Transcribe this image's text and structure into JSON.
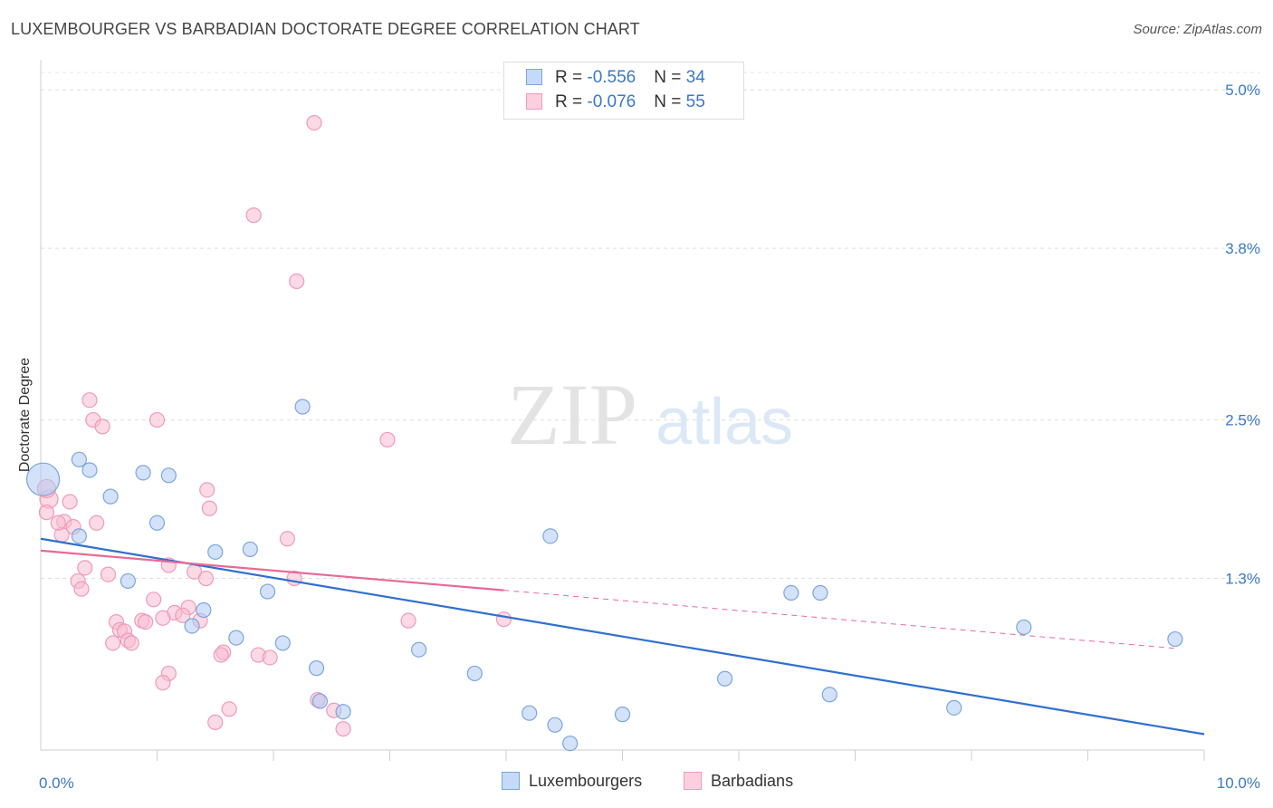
{
  "header": {
    "title": "LUXEMBOURGER VS BARBADIAN DOCTORATE DEGREE CORRELATION CHART",
    "source": "Source: ZipAtlas.com"
  },
  "watermark": {
    "zip": "ZIP",
    "atlas": "atlas"
  },
  "legend": {
    "blue": {
      "r_label": "R = ",
      "r_value": "-0.556",
      "n_label": "N = ",
      "n_value": "34"
    },
    "pink": {
      "r_label": "R = ",
      "r_value": "-0.076",
      "n_label": "N = ",
      "n_value": "55"
    }
  },
  "colors": {
    "blue_fill": "#aecbf2",
    "blue_stroke": "#7aa6de",
    "blue_line": "#2f6fd0",
    "pink_fill": "#f8bcd0",
    "pink_stroke": "#ef9ab8",
    "pink_line": "#e86a94",
    "tick_text": "#3a78c8"
  },
  "chart_data": {
    "type": "scatter",
    "title": "LUXEMBOURGER VS BARBADIAN DOCTORATE DEGREE CORRELATION CHART",
    "xlabel": "",
    "ylabel": "Doctorate Degree",
    "xlim": [
      0,
      10
    ],
    "ylim": [
      0,
      5.2
    ],
    "x_tick_labels": [
      {
        "value": 0,
        "label": "0.0%"
      },
      {
        "value": 10,
        "label": "10.0%"
      }
    ],
    "y_tick_labels": [
      {
        "value": 1.3,
        "label": "1.3%"
      },
      {
        "value": 2.5,
        "label": "2.5%"
      },
      {
        "value": 3.8,
        "label": "3.8%"
      },
      {
        "value": 5.0,
        "label": "5.0%"
      }
    ],
    "grid": true,
    "legend_position": "top-center",
    "series": [
      {
        "name": "Luxembourgers",
        "color": "#aecbf2",
        "points": [
          [
            0.02,
            2.05
          ],
          [
            0.42,
            2.12
          ],
          [
            0.88,
            2.1
          ],
          [
            1.1,
            2.08
          ],
          [
            0.6,
            1.92
          ],
          [
            0.33,
            1.62
          ],
          [
            1.0,
            1.72
          ],
          [
            1.5,
            1.5
          ],
          [
            1.8,
            1.52
          ],
          [
            2.25,
            2.6
          ],
          [
            0.75,
            1.28
          ],
          [
            1.4,
            1.06
          ],
          [
            1.3,
            0.94
          ],
          [
            1.95,
            1.2
          ],
          [
            1.68,
            0.85
          ],
          [
            2.08,
            0.81
          ],
          [
            2.37,
            0.62
          ],
          [
            3.25,
            0.76
          ],
          [
            3.73,
            0.58
          ],
          [
            4.2,
            0.28
          ],
          [
            4.42,
            0.19
          ],
          [
            4.55,
            0.05
          ],
          [
            4.38,
            1.62
          ],
          [
            5.0,
            0.27
          ],
          [
            5.88,
            0.54
          ],
          [
            6.45,
            1.19
          ],
          [
            6.7,
            1.19
          ],
          [
            6.78,
            0.42
          ],
          [
            7.85,
            0.32
          ],
          [
            8.45,
            0.93
          ],
          [
            9.75,
            0.84
          ],
          [
            2.4,
            0.37
          ],
          [
            2.6,
            0.29
          ],
          [
            0.33,
            2.2
          ]
        ]
      },
      {
        "name": "Barbadians",
        "color": "#f8bcd0",
        "points": [
          [
            2.35,
            4.75
          ],
          [
            1.83,
            4.05
          ],
          [
            2.2,
            3.55
          ],
          [
            0.42,
            2.65
          ],
          [
            0.45,
            2.5
          ],
          [
            0.53,
            2.45
          ],
          [
            1.0,
            2.5
          ],
          [
            2.98,
            2.35
          ],
          [
            0.07,
            1.9
          ],
          [
            0.05,
            1.8
          ],
          [
            0.25,
            1.88
          ],
          [
            0.2,
            1.73
          ],
          [
            0.28,
            1.69
          ],
          [
            0.48,
            1.72
          ],
          [
            0.18,
            1.63
          ],
          [
            1.43,
            1.97
          ],
          [
            1.45,
            1.83
          ],
          [
            2.12,
            1.6
          ],
          [
            0.38,
            1.38
          ],
          [
            0.58,
            1.33
          ],
          [
            1.1,
            1.4
          ],
          [
            1.32,
            1.35
          ],
          [
            1.42,
            1.3
          ],
          [
            2.18,
            1.3
          ],
          [
            0.32,
            1.28
          ],
          [
            0.35,
            1.22
          ],
          [
            0.97,
            1.14
          ],
          [
            1.27,
            1.08
          ],
          [
            1.15,
            1.04
          ],
          [
            1.22,
            1.02
          ],
          [
            1.05,
            1.0
          ],
          [
            0.65,
            0.97
          ],
          [
            0.87,
            0.98
          ],
          [
            0.9,
            0.97
          ],
          [
            1.37,
            0.98
          ],
          [
            0.68,
            0.91
          ],
          [
            0.72,
            0.9
          ],
          [
            0.75,
            0.83
          ],
          [
            0.78,
            0.81
          ],
          [
            0.62,
            0.81
          ],
          [
            1.57,
            0.74
          ],
          [
            1.55,
            0.72
          ],
          [
            1.87,
            0.72
          ],
          [
            1.97,
            0.7
          ],
          [
            1.1,
            0.58
          ],
          [
            1.05,
            0.51
          ],
          [
            2.38,
            0.38
          ],
          [
            1.62,
            0.31
          ],
          [
            2.52,
            0.3
          ],
          [
            1.5,
            0.21
          ],
          [
            2.6,
            0.16
          ],
          [
            3.16,
            0.98
          ],
          [
            3.98,
            0.99
          ],
          [
            0.15,
            1.72
          ],
          [
            0.05,
            1.98
          ]
        ]
      }
    ],
    "trendlines": [
      {
        "series": "Luxembourgers",
        "x": [
          0,
          10
        ],
        "y": [
          1.6,
          0.12
        ],
        "style": "solid"
      },
      {
        "series": "Barbadians",
        "x": [
          0,
          3.98
        ],
        "y": [
          1.51,
          1.21
        ],
        "style": "solid"
      },
      {
        "series": "Barbadians",
        "x": [
          3.98,
          9.75
        ],
        "y": [
          1.21,
          0.77
        ],
        "style": "dashed"
      }
    ]
  },
  "bottom_legend": {
    "blue_label": "Luxembourgers",
    "pink_label": "Barbadians"
  }
}
